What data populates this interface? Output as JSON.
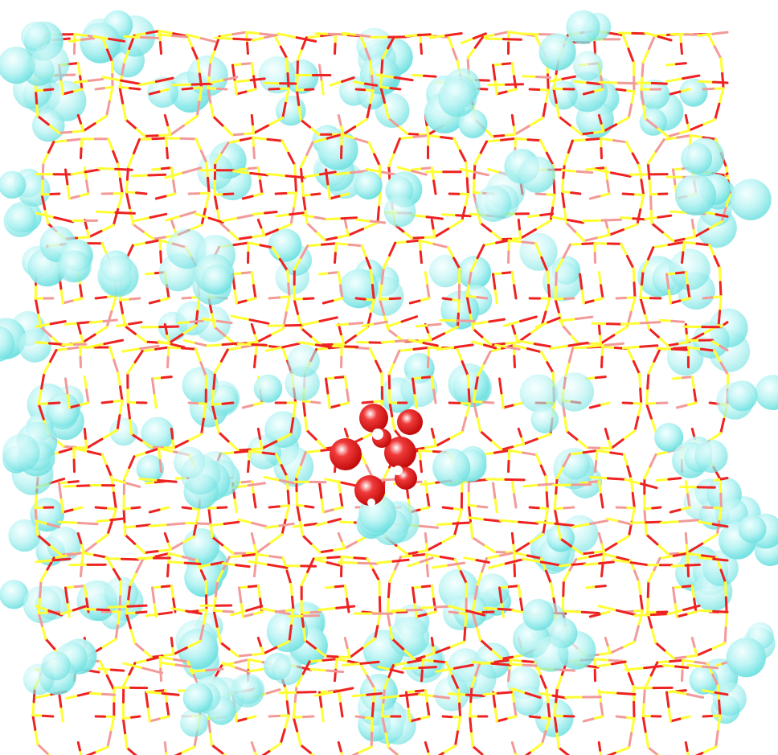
{
  "colors": {
    "background": "#ffffff",
    "bond_silicon": "#ffff33",
    "bond_oxygen": "#ee2222",
    "bond_oxygen_light": "#f29a9a",
    "guest_molecule": "#7fe8e8",
    "guest_molecule_highlight": "#f4ffff",
    "central_molecule": "#ee1111",
    "central_molecule_highlight": "#ffffff"
  },
  "scene": {
    "description_hidden": "",
    "framework": "zeolite-lattice",
    "guests": "adsorbed-molecules",
    "central_cluster": "oxygen-cluster"
  }
}
